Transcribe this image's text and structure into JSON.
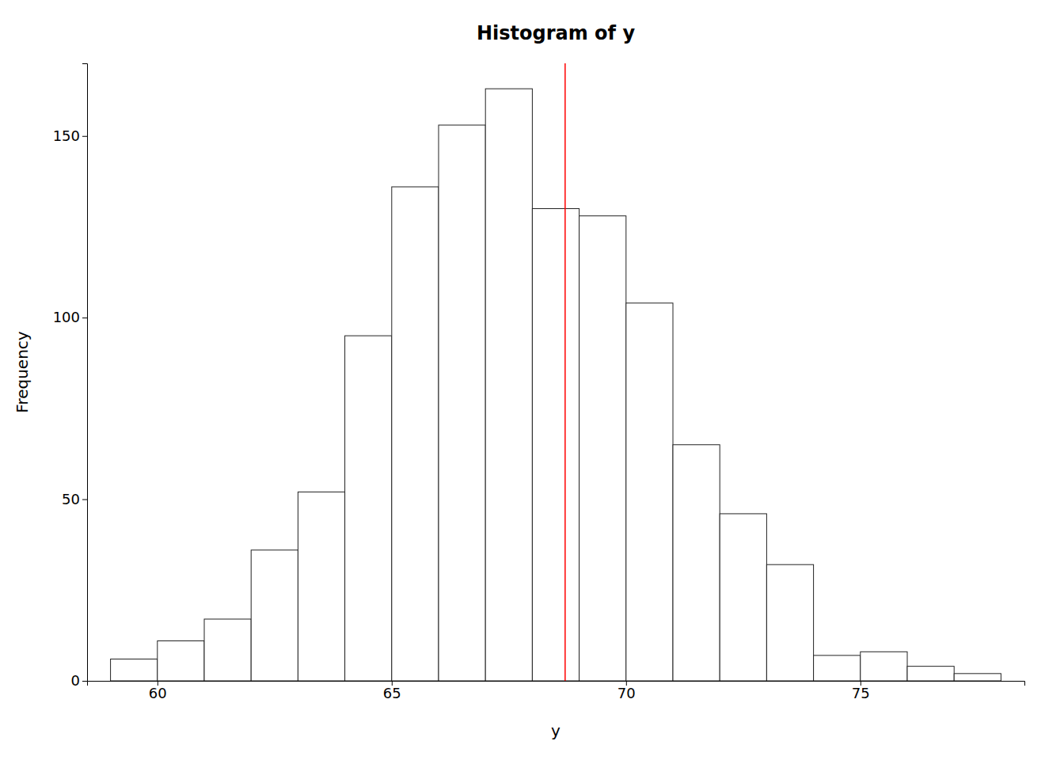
{
  "chart_data": {
    "type": "histogram",
    "title": "Histogram of y",
    "xlabel": "y",
    "ylabel": "Frequency",
    "bins": [
      59.0,
      60.0,
      61.0,
      62.0,
      63.0,
      64.0,
      65.0,
      66.0,
      67.0,
      68.0,
      69.0,
      70.0,
      71.0,
      72.0,
      73.0,
      74.0,
      75.0,
      76.0,
      77.0,
      78.0
    ],
    "values": [
      6,
      11,
      17,
      36,
      52,
      95,
      136,
      153,
      163,
      130,
      128,
      104,
      65,
      46,
      32,
      7,
      8,
      4,
      2
    ],
    "color": "white",
    "vline": {
      "x": 68.7,
      "color": "red"
    },
    "xlim": [
      58.5,
      78.5
    ],
    "xticks": [
      60,
      65,
      70,
      75
    ],
    "ylim": [
      0,
      170
    ],
    "yticks": [
      0,
      50,
      100,
      150
    ],
    "grid": false
  }
}
